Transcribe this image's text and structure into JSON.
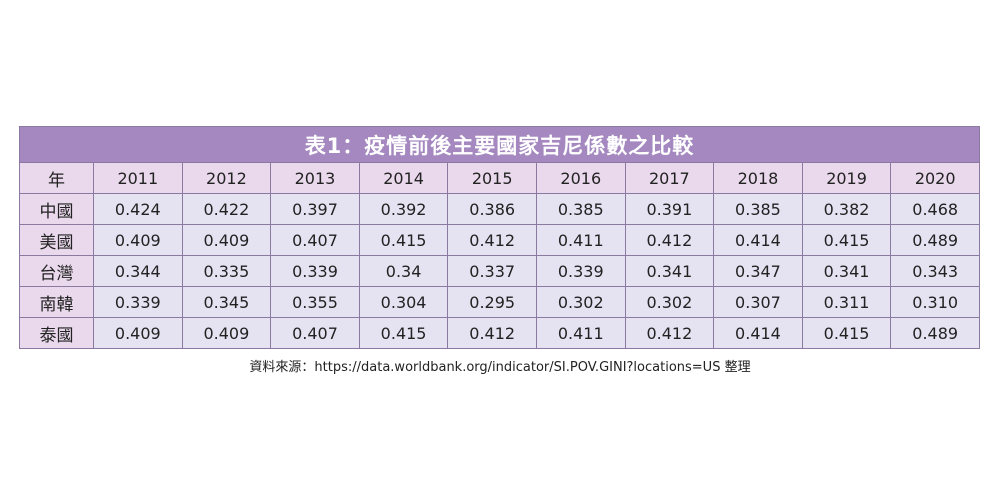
{
  "chart_data": {
    "type": "table",
    "title": "表1：疫情前後主要國家吉尼係數之比較",
    "corner_label": "年",
    "columns": [
      "2011",
      "2012",
      "2013",
      "2014",
      "2015",
      "2016",
      "2017",
      "2018",
      "2019",
      "2020"
    ],
    "rows": [
      {
        "label": "中國",
        "values": [
          "0.424",
          "0.422",
          "0.397",
          "0.392",
          "0.386",
          "0.385",
          "0.391",
          "0.385",
          "0.382",
          "0.468"
        ]
      },
      {
        "label": "美國",
        "values": [
          "0.409",
          "0.409",
          "0.407",
          "0.415",
          "0.412",
          "0.411",
          "0.412",
          "0.414",
          "0.415",
          "0.489"
        ]
      },
      {
        "label": "台灣",
        "values": [
          "0.344",
          "0.335",
          "0.339",
          "0.34",
          "0.337",
          "0.339",
          "0.341",
          "0.347",
          "0.341",
          "0.343"
        ]
      },
      {
        "label": "南韓",
        "values": [
          "0.339",
          "0.345",
          "0.355",
          "0.304",
          "0.295",
          "0.302",
          "0.302",
          "0.307",
          "0.311",
          "0.310"
        ]
      },
      {
        "label": "泰國",
        "values": [
          "0.409",
          "0.409",
          "0.407",
          "0.415",
          "0.412",
          "0.411",
          "0.412",
          "0.414",
          "0.415",
          "0.489"
        ]
      }
    ],
    "source": "資料來源：https://data.worldbank.org/indicator/SI.POV.GINI?locations=US 整理"
  },
  "colors": {
    "title_bg": "#a488bf",
    "header_bg": "#ead9ec",
    "cell_bg": "#e5e3f2",
    "border": "#8a7aa0"
  }
}
